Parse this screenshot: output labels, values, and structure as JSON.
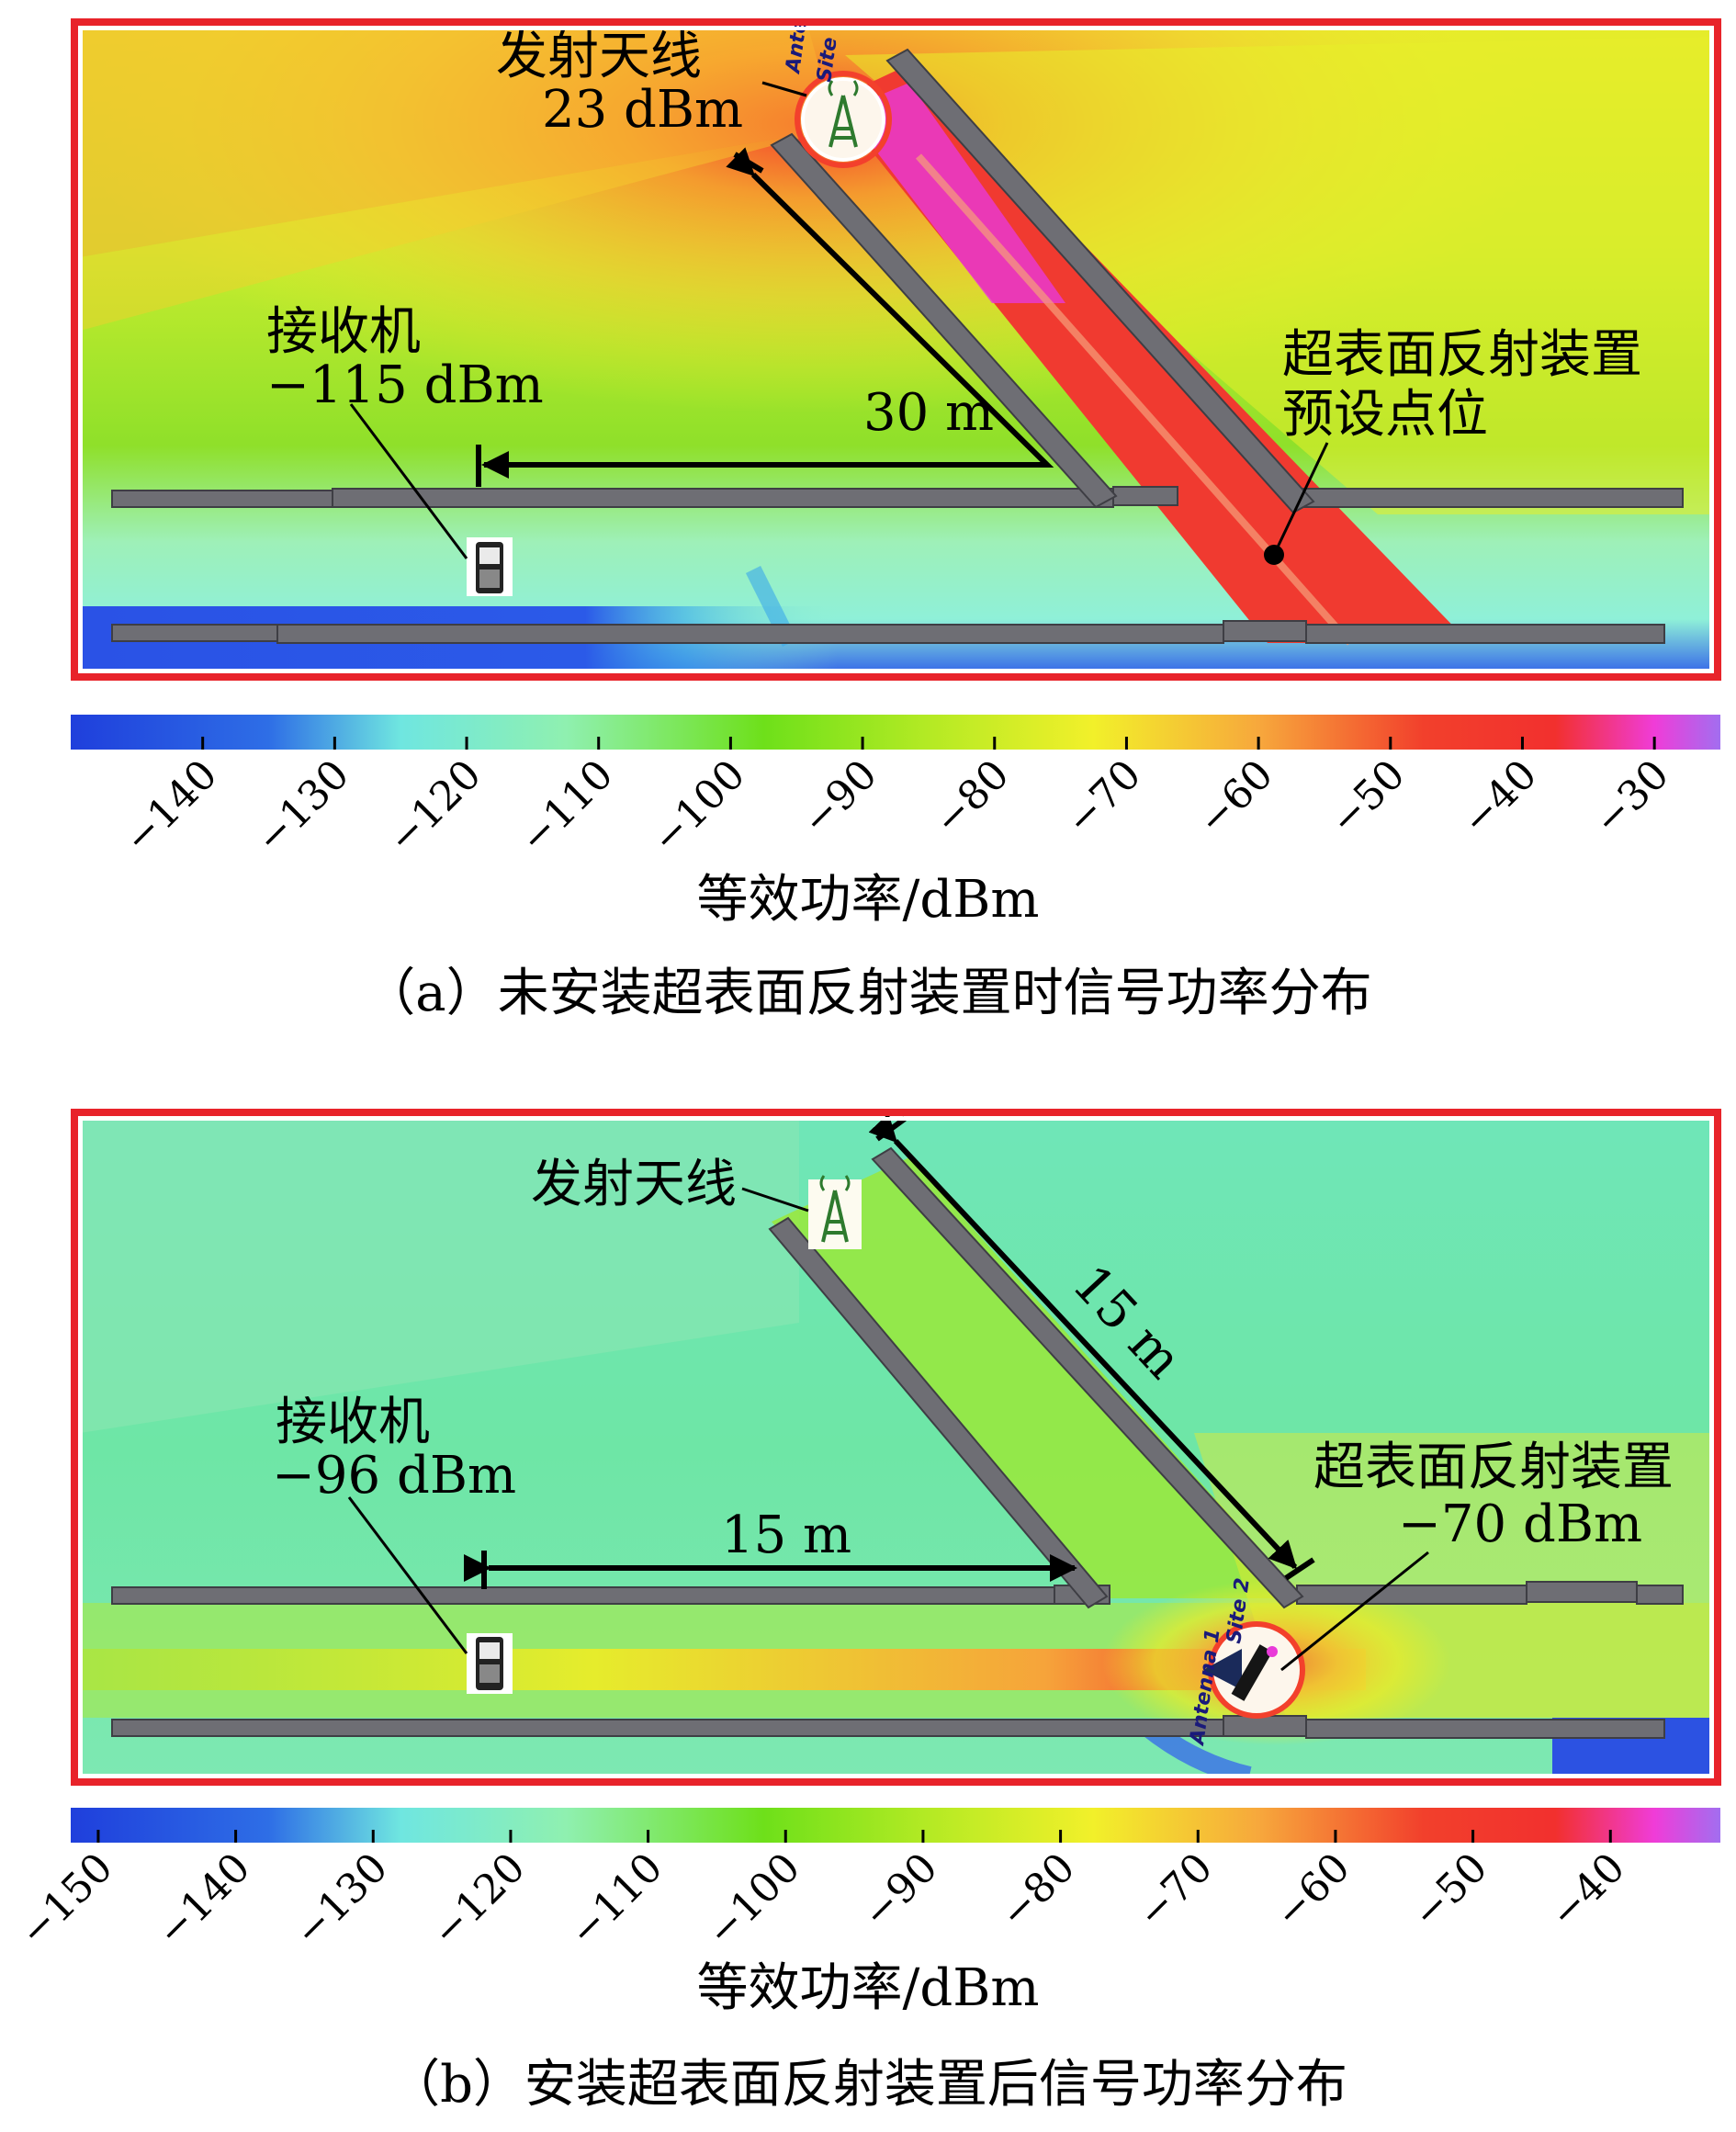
{
  "panels": [
    {
      "id": "a",
      "transmitter": {
        "label": "发射天线",
        "value": "23 dBm"
      },
      "receiver": {
        "label": "接收机",
        "value": "−115 dBm"
      },
      "distance_label": "30 m",
      "metasurface": {
        "label": "超表面反射装置",
        "sub": "预设点位"
      },
      "site_labels": [
        "Ante",
        "Site"
      ],
      "colorbar": {
        "ticks": [
          "−140",
          "−130",
          "−120",
          "−110",
          "−100",
          "−90",
          "−80",
          "−70",
          "−60",
          "−50",
          "−40",
          "−30"
        ],
        "range": [
          -150,
          -25
        ],
        "label": "等效功率/dBm"
      },
      "caption": "（a）未安装超表面反射装置时信号功率分布"
    },
    {
      "id": "b",
      "transmitter": {
        "label": "发射天线"
      },
      "receiver": {
        "label": "接收机",
        "value": "−96 dBm"
      },
      "distance_label_1": "15 m",
      "distance_label_2": "15 m",
      "metasurface": {
        "label": "超表面反射装置",
        "value": "−70 dBm"
      },
      "site_labels": [
        "Antenna 1",
        "Site 2"
      ],
      "colorbar": {
        "ticks": [
          "−150",
          "−140",
          "−130",
          "−120",
          "−110",
          "−100",
          "−90",
          "−80",
          "−70",
          "−60",
          "−50",
          "−40"
        ],
        "range": [
          -152,
          -32
        ],
        "label": "等效功率/dBm"
      },
      "caption": "（b）安装超表面反射装置后信号功率分布"
    }
  ],
  "colors": {
    "frame": "#e8232a",
    "wall": "#6e6e74",
    "arrow": "#000000"
  }
}
